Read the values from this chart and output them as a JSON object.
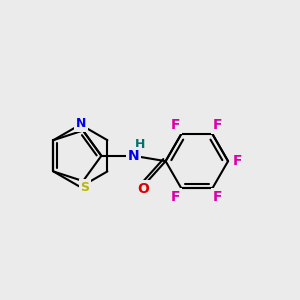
{
  "bg_color": "#ebebeb",
  "bond_color": "#000000",
  "bond_width": 1.5,
  "atom_colors": {
    "S": "#b8b800",
    "N": "#0000ee",
    "O": "#dd0000",
    "F": "#dd00aa",
    "H": "#007070",
    "C": "#000000"
  },
  "font_size": 10,
  "font_size_H": 9,
  "font_size_F": 10
}
